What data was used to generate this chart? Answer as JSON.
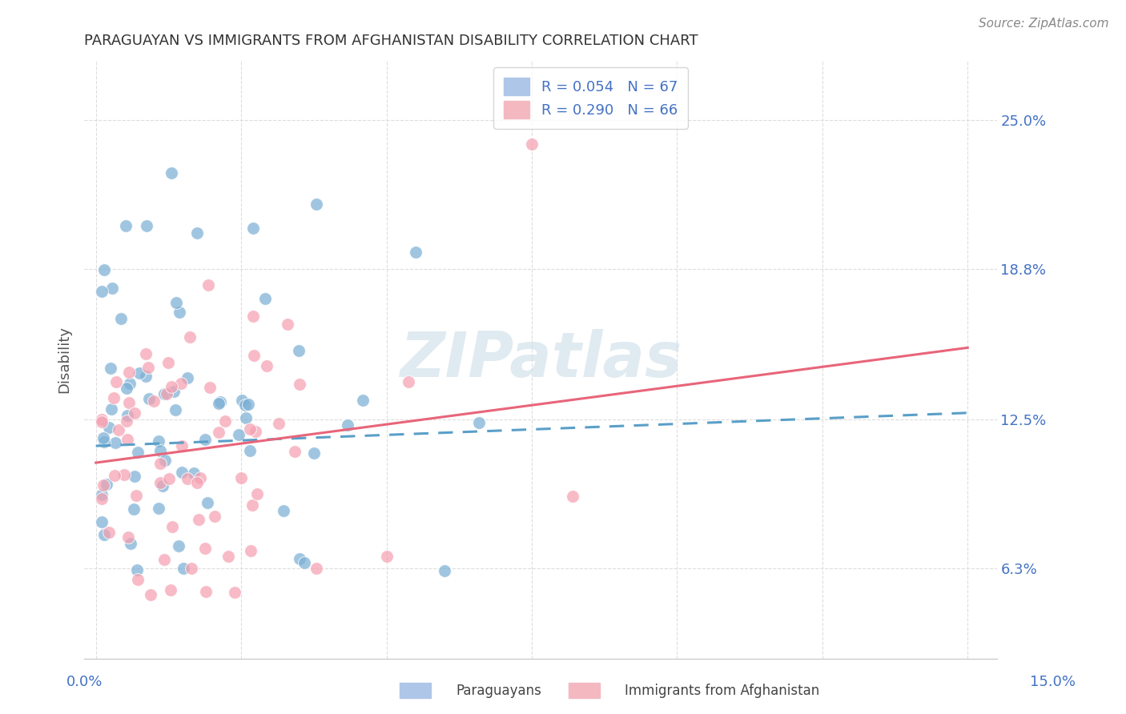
{
  "title": "PARAGUAYAN VS IMMIGRANTS FROM AFGHANISTAN DISABILITY CORRELATION CHART",
  "source": "Source: ZipAtlas.com",
  "ylabel": "Disability",
  "ytick_labels": [
    "6.3%",
    "12.5%",
    "18.8%",
    "25.0%"
  ],
  "ytick_values": [
    0.063,
    0.125,
    0.188,
    0.25
  ],
  "xlim": [
    -0.002,
    0.155
  ],
  "ylim": [
    0.025,
    0.275
  ],
  "paraguayan_color": "#7bafd4",
  "afghanistan_color": "#f4a0b0",
  "par_line_color": "#5a9fc8",
  "afg_line_color": "#e8657a",
  "tick_color": "#4472c4",
  "legend_patch_blue": "#aec6e8",
  "legend_patch_pink": "#f4b8c1",
  "watermark": "ZIPatlas",
  "watermark_color": "#ccdde8",
  "title_color": "#333333",
  "source_color": "#888888",
  "ylabel_color": "#555555",
  "grid_color": "#dddddd",
  "bottom_spine_color": "#cccccc",
  "par_line_intercept": 0.114,
  "par_line_slope": 0.092,
  "afg_line_intercept": 0.107,
  "afg_line_slope": 0.32
}
